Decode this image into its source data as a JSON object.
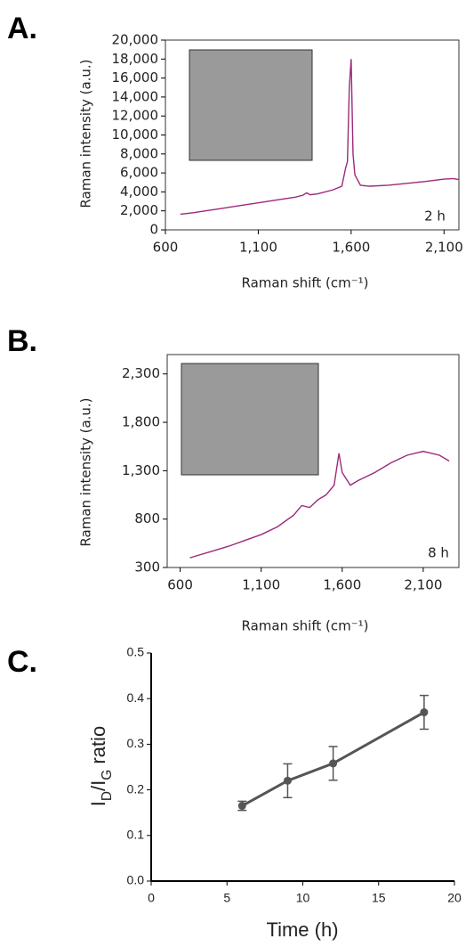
{
  "chart_data": [
    {
      "type": "line",
      "panel_label": "A.",
      "x_label": "Raman shift (cm⁻¹)",
      "y_label": "Raman intensity (a.u.)",
      "annotation": "2 h",
      "x": [
        680,
        750,
        800,
        900,
        1000,
        1100,
        1200,
        1300,
        1340,
        1360,
        1380,
        1420,
        1500,
        1550,
        1570,
        1580,
        1590,
        1600,
        1610,
        1620,
        1650,
        1700,
        1800,
        1900,
        2000,
        2100,
        2150,
        2180
      ],
      "values": [
        1650,
        1800,
        1950,
        2250,
        2550,
        2850,
        3150,
        3450,
        3650,
        3900,
        3700,
        3800,
        4200,
        4600,
        6500,
        7200,
        15000,
        18000,
        8000,
        5800,
        4700,
        4600,
        4700,
        4900,
        5100,
        5350,
        5400,
        5300
      ],
      "color": "#9b2a7a",
      "frame": true,
      "xlim": [
        600,
        2180
      ],
      "xticks": [
        600,
        {
          "value": 1100,
          "label": "1,100"
        },
        {
          "value": 1600,
          "label": "1,600"
        },
        {
          "value": 2100,
          "label": "2,100"
        }
      ],
      "ylim": [
        0,
        20000
      ],
      "yticks": [
        0,
        {
          "value": 2000,
          "label": "2,000"
        },
        {
          "value": 4000,
          "label": "4,000"
        },
        {
          "value": 6000,
          "label": "6,000"
        },
        {
          "value": 8000,
          "label": "8,000"
        },
        {
          "value": 10000,
          "label": "10,000"
        },
        {
          "value": 12000,
          "label": "12,000"
        },
        {
          "value": 14000,
          "label": "14,000"
        },
        {
          "value": 16000,
          "label": "16,000"
        },
        {
          "value": 18000,
          "label": "18,000"
        },
        {
          "value": 20000,
          "label": "20,000"
        }
      ]
    },
    {
      "type": "line",
      "panel_label": "B.",
      "x_label": "Raman shift (cm⁻¹)",
      "y_label": "Raman intensity (a.u.)",
      "annotation": "8 h",
      "x": [
        660,
        800,
        900,
        1000,
        1100,
        1200,
        1300,
        1350,
        1400,
        1450,
        1500,
        1550,
        1580,
        1600,
        1650,
        1700,
        1800,
        1900,
        2000,
        2100,
        2200,
        2260
      ],
      "values": [
        400,
        470,
        520,
        580,
        640,
        720,
        840,
        940,
        920,
        1000,
        1050,
        1150,
        1480,
        1280,
        1150,
        1200,
        1280,
        1380,
        1460,
        1500,
        1460,
        1400
      ],
      "color": "#9b2a7a",
      "frame": true,
      "xlim": [
        520,
        2320
      ],
      "xticks": [
        600,
        {
          "value": 1100,
          "label": "1,100"
        },
        {
          "value": 1600,
          "label": "1,600"
        },
        {
          "value": 2100,
          "label": "2,100"
        }
      ],
      "ylim": [
        300,
        2500
      ],
      "yticks": [
        300,
        800,
        {
          "value": 1300,
          "label": "1,300"
        },
        {
          "value": 1800,
          "label": "1,800"
        },
        {
          "value": 2300,
          "label": "2,300"
        }
      ]
    },
    {
      "type": "errorline",
      "panel_label": "C.",
      "x_label": "Time (h)",
      "y_label": [
        "I",
        "D",
        "/I",
        "G",
        " ratio"
      ],
      "x": [
        6,
        9,
        12,
        18
      ],
      "values": [
        0.165,
        0.22,
        0.258,
        0.37
      ],
      "errors": [
        0.01,
        0.037,
        0.037,
        0.037
      ],
      "color": "#555555",
      "frame": false,
      "xlim": [
        0,
        20
      ],
      "xticks": [
        0,
        5,
        10,
        15,
        20
      ],
      "ylim": [
        0,
        0.5
      ],
      "yticks": [
        {
          "value": 0,
          "label": "0.0"
        },
        0.1,
        0.2,
        0.3,
        0.4,
        0.5
      ]
    }
  ]
}
